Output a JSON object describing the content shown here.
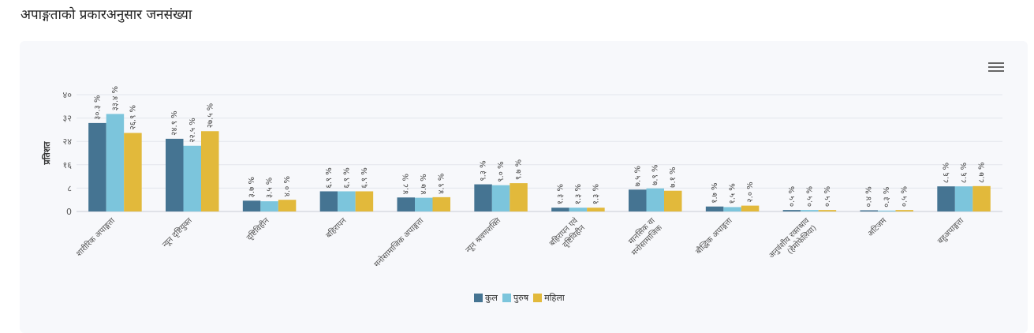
{
  "page": {
    "title": "अपाङ्गताको प्रकारअनुसार जनसंख्या"
  },
  "colors": {
    "kul": "#457492",
    "purush": "#7cc5dc",
    "mahila": "#e2b93b",
    "card_bg": "#f7f8fb"
  },
  "toolbar": {
    "menu_icon": "hamburger-menu-icon"
  },
  "chart_data": {
    "type": "bar",
    "ylabel": "प्रतिशत",
    "ylim": [
      0,
      40
    ],
    "yticks": [
      0,
      8,
      16,
      24,
      32,
      40
    ],
    "ytick_labels": [
      "0",
      "८",
      "१६",
      "२४",
      "३२",
      "४०"
    ],
    "grid": true,
    "legend_position": "bottom-center",
    "categories": [
      [
        "शारीरिक अपाङ्गता"
      ],
      [
        "न्यून दृष्टियुक्त"
      ],
      [
        "दृष्टिविहीन"
      ],
      [
        "बहिरापन"
      ],
      [
        "मनोसामाजिक अपाङ्गता"
      ],
      [
        "न्यून श्रवणशक्ति"
      ],
      [
        "बहिरापन एवं",
        "दृष्टिविहीन"
      ],
      [
        "मानसिक वा",
        "मनोसामाजिक"
      ],
      [
        "बौद्धिक अपाङ्गता"
      ],
      [
        "अनुवंशीय रक्तश्राव",
        "(हेमोफेलिया)"
      ],
      [
        "अटिजम"
      ],
      [
        "बहुअपाङ्गता"
      ]
    ],
    "series": [
      {
        "name": "कुल",
        "values": [
          30.3,
          24.9,
          3.7,
          6.9,
          4.8,
          9.3,
          1.3,
          7.5,
          1.7,
          0.5,
          0.4,
          8.6
        ],
        "labels": [
          "३०.३ %",
          "२४.९ %",
          "३.७ %",
          "६.९ %",
          "४.८ %",
          "९.३ %",
          "१.३ %",
          "७.५ %",
          "१.७ %",
          "०.५ %",
          "०.४ %",
          "८.६ %"
        ]
      },
      {
        "name": "पुरुष",
        "values": [
          33.4,
          22.5,
          3.5,
          6.9,
          4.7,
          9.0,
          1.3,
          7.9,
          1.5,
          0.5,
          0.3,
          8.6
        ],
        "labels": [
          "३३.४ %",
          "२२.५ %",
          "३.५ %",
          "६.९ %",
          "४.७ %",
          "९.० %",
          "१.३ %",
          "७.९ %",
          "१.५ %",
          "०.५ %",
          "०.३ %",
          "८.६ %"
        ]
      },
      {
        "name": "महिला",
        "values": [
          26.9,
          27.5,
          4.0,
          6.9,
          4.9,
          9.7,
          1.3,
          7.1,
          2.0,
          0.5,
          0.5,
          8.7
        ],
        "labels": [
          "२६.९ %",
          "२७.५ %",
          "४.० %",
          "६.९ %",
          "४.९ %",
          "९.७ %",
          "१.३ %",
          "७.१ %",
          "२.० %",
          "०.५ %",
          "०.५ %",
          "८.७ %"
        ]
      }
    ]
  }
}
